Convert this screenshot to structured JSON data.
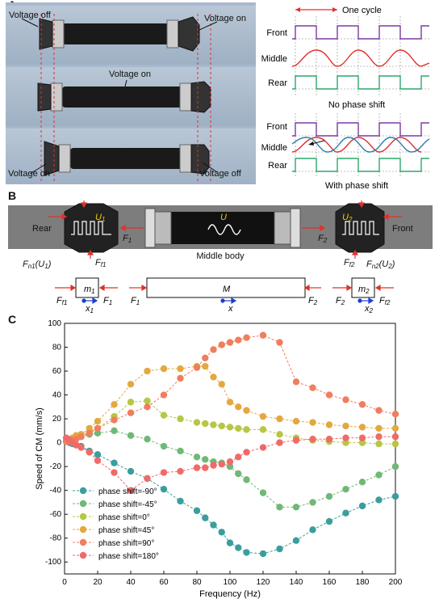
{
  "panelA": {
    "label": "A",
    "photo_labels": {
      "voltage_off_top": "Voltage off",
      "voltage_on_top": "Voltage on",
      "voltage_on_mid": "Voltage on",
      "voltage_on_bottom": "Voltage on",
      "voltage_off_bottom": "Voltage off"
    },
    "cycle_label": "One cycle",
    "row_labels": [
      "Front",
      "Middle",
      "Rear"
    ],
    "caption_top": "No phase shift",
    "caption_bottom": "With phase shift",
    "colors": {
      "front": "#7b3aa3",
      "middle_red": "#e0312b",
      "middle_blue": "#2a7cb0",
      "rear": "#2aa86b"
    }
  },
  "panelB": {
    "label": "B",
    "rear": "Rear",
    "front": "Front",
    "middle_body": "Middle body",
    "F1": "F",
    "F1_sub": "1",
    "F2": "F",
    "F2_sub": "2",
    "U": "U",
    "U1": "U",
    "U1_sub": "1",
    "U2": "U",
    "U2_sub": "2",
    "Fn1": "F",
    "Fn1_sub": "n1",
    "Fn1_arg": "(U",
    "Fn1_arg_sub": "1",
    "Fn1_close": ")",
    "Ff1": "F",
    "Ff1_sub": "f1",
    "Ff2": "F",
    "Ff2_sub": "f2",
    "Fn2": "F",
    "Fn2_sub": "n2",
    "Fn2_arg": "(U",
    "Fn2_arg_sub": "2",
    "Fn2_close": ")",
    "m1": "m",
    "m1_sub": "1",
    "M": "M",
    "m2": "m",
    "m2_sub": "2",
    "x1": "x",
    "x1_sub": "1",
    "x": "x",
    "x2": "x",
    "x2_sub": "2"
  },
  "panelC": {
    "label": "C"
  },
  "chart_data": {
    "type": "scatter",
    "xlabel": "Frequency (Hz)",
    "ylabel": "Speed of CM (mm/s)",
    "xlim": [
      0,
      200
    ],
    "ylim": [
      -110,
      100
    ],
    "xticks": [
      0,
      20,
      40,
      60,
      80,
      100,
      120,
      140,
      160,
      180,
      200
    ],
    "yticks": [
      -100,
      -80,
      -60,
      -40,
      -20,
      0,
      20,
      40,
      60,
      80,
      100
    ],
    "legend_position": "bottom-left",
    "series": [
      {
        "name": "phase shift=-90°",
        "color": "#3a9e9e",
        "x": [
          1,
          2,
          3,
          5,
          7,
          10,
          15,
          20,
          30,
          40,
          50,
          60,
          70,
          80,
          85,
          90,
          95,
          100,
          105,
          110,
          120,
          130,
          140,
          150,
          160,
          170,
          180,
          190,
          200
        ],
        "y": [
          1,
          1,
          0,
          -1,
          -2,
          -3,
          -7,
          -10,
          -17,
          -24,
          -30,
          -39,
          -49,
          -57,
          -63,
          -69,
          -75,
          -84,
          -88,
          -92,
          -93,
          -89,
          -82,
          -73,
          -66,
          -59,
          -53,
          -48,
          -45
        ]
      },
      {
        "name": "phase shift=-45°",
        "color": "#70b878",
        "x": [
          1,
          2,
          3,
          5,
          7,
          10,
          15,
          20,
          30,
          40,
          50,
          60,
          70,
          80,
          85,
          90,
          95,
          100,
          105,
          110,
          120,
          130,
          140,
          150,
          160,
          170,
          180,
          190,
          200
        ],
        "y": [
          1,
          2,
          2,
          3,
          4,
          5,
          7,
          8,
          10,
          6,
          3,
          -3,
          -7,
          -12,
          -14,
          -16,
          -17,
          -20,
          -26,
          -31,
          -42,
          -54,
          -54,
          -50,
          -45,
          -39,
          -33,
          -27,
          -20
        ]
      },
      {
        "name": "phase shift=0°",
        "color": "#b7c645",
        "x": [
          1,
          2,
          3,
          5,
          7,
          10,
          15,
          20,
          30,
          40,
          50,
          60,
          70,
          80,
          85,
          90,
          95,
          100,
          105,
          110,
          120,
          130,
          140,
          150,
          160,
          170,
          180,
          190,
          200
        ],
        "y": [
          1,
          2,
          3,
          4,
          5,
          6,
          9,
          12,
          22,
          34,
          35,
          23,
          20,
          17,
          16,
          15,
          14,
          13,
          12,
          11,
          11,
          7,
          4,
          2,
          1,
          0,
          0,
          -1,
          -1
        ]
      },
      {
        "name": "phase shift=45°",
        "color": "#e3a840",
        "x": [
          1,
          2,
          3,
          5,
          7,
          10,
          15,
          20,
          30,
          40,
          50,
          60,
          70,
          80,
          85,
          90,
          95,
          100,
          105,
          110,
          120,
          130,
          140,
          150,
          160,
          170,
          180,
          190,
          200
        ],
        "y": [
          1,
          2,
          3,
          4,
          6,
          7,
          12,
          18,
          32,
          49,
          60,
          62,
          62,
          64,
          64,
          55,
          49,
          34,
          30,
          27,
          22,
          20,
          18,
          17,
          15,
          14,
          13,
          12,
          12
        ]
      },
      {
        "name": "phase shift=90°",
        "color": "#f07e5e",
        "x": [
          1,
          2,
          3,
          5,
          7,
          10,
          15,
          20,
          30,
          40,
          50,
          60,
          70,
          80,
          85,
          90,
          95,
          100,
          105,
          110,
          120,
          130,
          140,
          150,
          160,
          170,
          180,
          190,
          200
        ],
        "y": [
          1,
          1,
          2,
          2,
          3,
          5,
          8,
          12,
          19,
          25,
          30,
          40,
          54,
          63,
          71,
          78,
          82,
          84,
          86,
          88,
          90,
          84,
          51,
          46,
          40,
          36,
          32,
          27,
          24
        ]
      },
      {
        "name": "phase shift=180°",
        "color": "#f06a6a",
        "x": [
          1,
          2,
          3,
          5,
          7,
          10,
          15,
          20,
          30,
          40,
          50,
          60,
          70,
          80,
          85,
          90,
          95,
          100,
          105,
          110,
          120,
          130,
          140,
          150,
          160,
          170,
          180,
          190,
          200
        ],
        "y": [
          4,
          3,
          2,
          0,
          -2,
          -4,
          -8,
          -15,
          -25,
          -40,
          -30,
          -25,
          -24,
          -21,
          -21,
          -19,
          -18,
          -16,
          -12,
          -8,
          -4,
          0,
          2,
          3,
          3,
          4,
          4,
          5,
          5
        ]
      }
    ]
  }
}
